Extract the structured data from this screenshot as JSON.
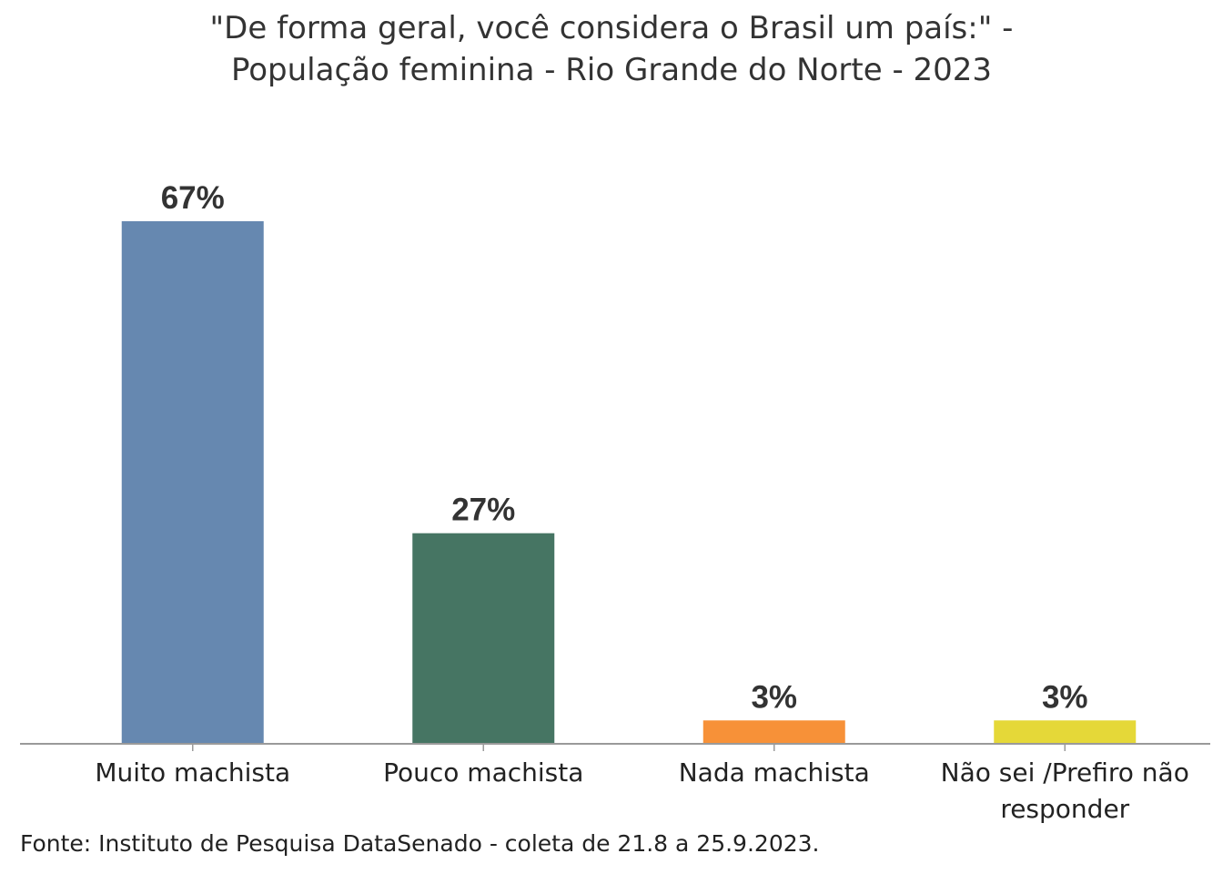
{
  "chart_data": {
    "type": "bar",
    "title_line1": "\"De forma geral, você considera o Brasil um país:\" -",
    "title_line2": "População feminina - Rio Grande do Norte - 2023",
    "categories": [
      "Muito machista",
      "Pouco machista",
      "Nada machista",
      "Não sei /Prefiro não responder"
    ],
    "category_lines": [
      [
        "Muito machista"
      ],
      [
        "Pouco machista"
      ],
      [
        "Nada machista"
      ],
      [
        "Não sei /Prefiro não",
        "responder"
      ]
    ],
    "values": [
      67,
      27,
      3,
      3
    ],
    "data_labels": [
      "67%",
      "27%",
      "3%",
      "3%"
    ],
    "colors": [
      "#6688b0",
      "#467563",
      "#f79138",
      "#e5d838"
    ],
    "ylim": [
      0,
      67
    ],
    "grid": false,
    "legend": "none",
    "source": "Fonte: Instituto de Pesquisa DataSenado - coleta de 21.8 a 25.9.2023."
  }
}
